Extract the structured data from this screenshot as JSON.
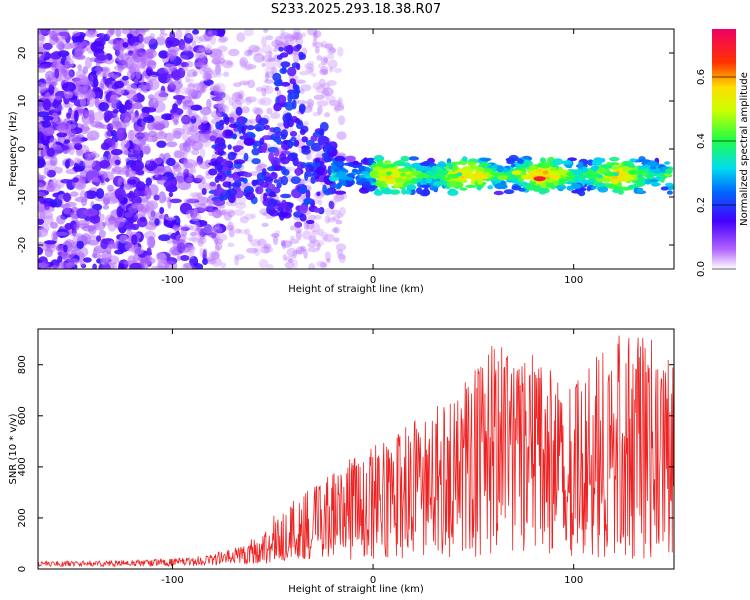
{
  "title": "S233.2025.293.18.38.R07",
  "chart_data": [
    {
      "type": "heatmap",
      "name": "spectrogram",
      "xlabel": "Height of straight line (km)",
      "ylabel": "Frequency (Hz)",
      "xlim": [
        -167,
        150
      ],
      "ylim": [
        -25,
        25
      ],
      "xticks": [
        -100,
        0,
        100
      ],
      "yticks": [
        -20,
        -10,
        0,
        10,
        20
      ],
      "colorbar": {
        "label": "Normalized spectral amplitude",
        "range": [
          0,
          0.75
        ],
        "ticks": [
          0.0,
          0.2,
          0.4,
          0.6
        ],
        "tick_labels": [
          "0.0",
          "0.2",
          "0.4",
          "0.6"
        ]
      },
      "features": {
        "band_center_hz": -5.5,
        "band_start_km": -20,
        "band_end_km": 148,
        "band_peak_km": 83,
        "band_peak_amplitude": 0.7,
        "noise_region_km": [
          -167,
          -80
        ],
        "descending_branch_start_km": -80,
        "descending_branch_end_km": -20
      }
    },
    {
      "type": "line",
      "name": "snr",
      "xlabel": "Height of straight line (km)",
      "ylabel": "SNR (10 * v/v)",
      "xlim": [
        -167,
        150
      ],
      "ylim": [
        0,
        940
      ],
      "xticks": [
        -100,
        0,
        100
      ],
      "yticks": [
        0,
        200,
        400,
        600,
        800
      ],
      "color": "#ee2222",
      "envelope": {
        "x": [
          -167,
          -120,
          -90,
          -70,
          -55,
          -45,
          -30,
          -10,
          0,
          20,
          40,
          60,
          80,
          100,
          120,
          140,
          150
        ],
        "y_max": [
          30,
          35,
          45,
          80,
          150,
          260,
          330,
          440,
          480,
          580,
          680,
          900,
          840,
          720,
          920,
          900,
          820
        ],
        "y_min": [
          10,
          10,
          12,
          15,
          20,
          25,
          30,
          35,
          40,
          40,
          45,
          50,
          50,
          50,
          40,
          40,
          50
        ]
      },
      "samples": 1100
    }
  ]
}
